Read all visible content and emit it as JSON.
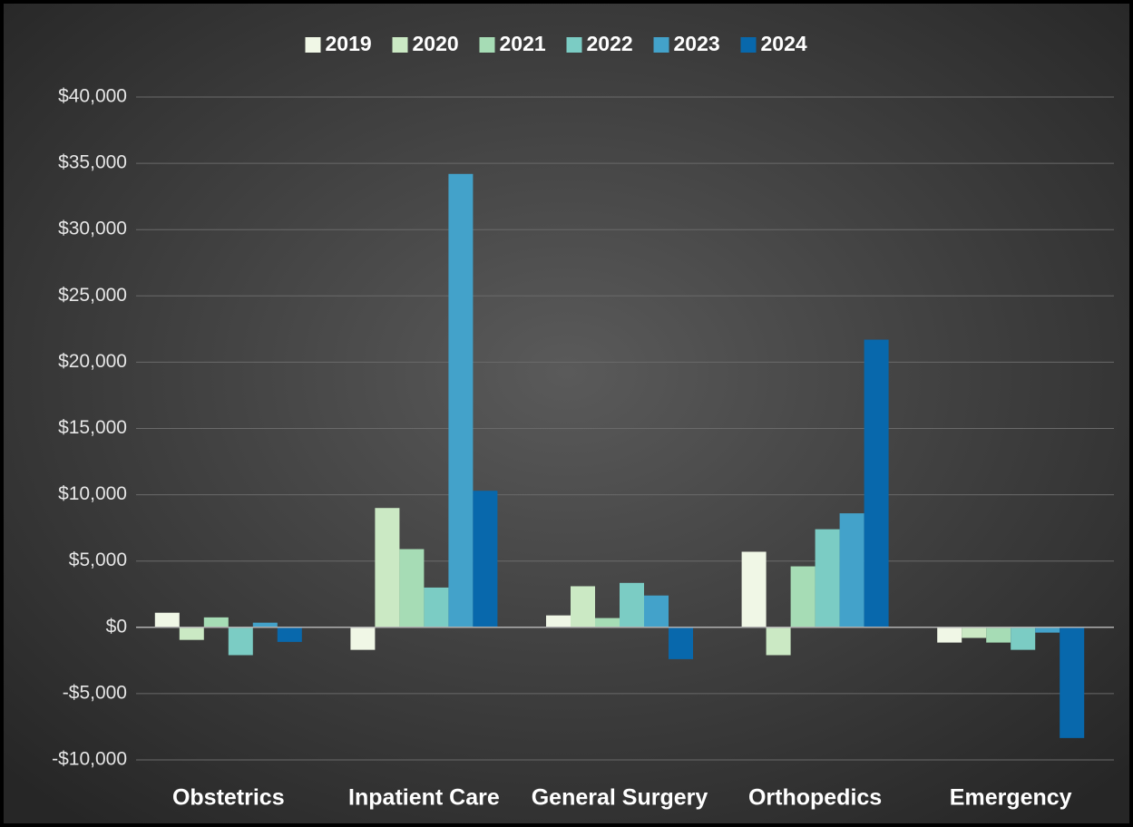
{
  "chart_data": {
    "type": "bar",
    "categories": [
      "Obstetrics",
      "Inpatient Care",
      "General Surgery",
      "Orthopedics",
      "Emergency"
    ],
    "series": [
      {
        "name": "2019",
        "color": "#f0f7e6",
        "values": [
          1100,
          -1700,
          900,
          5700,
          -1150
        ]
      },
      {
        "name": "2020",
        "color": "#cbe9c4",
        "values": [
          -950,
          9000,
          3100,
          -2100,
          -800
        ]
      },
      {
        "name": "2021",
        "color": "#a6dcb5",
        "values": [
          750,
          5900,
          700,
          4600,
          -1150
        ]
      },
      {
        "name": "2022",
        "color": "#7bccc4",
        "values": [
          -2100,
          3000,
          3350,
          7400,
          -1700
        ]
      },
      {
        "name": "2023",
        "color": "#43a2ca",
        "values": [
          350,
          34200,
          2400,
          8600,
          -400
        ]
      },
      {
        "name": "2024",
        "color": "#0868ac",
        "values": [
          -1100,
          10300,
          -2400,
          21700,
          -8350
        ]
      }
    ],
    "ylim": [
      -10000,
      40000
    ],
    "yticks": [
      {
        "value": -10000,
        "label": "-$10,000"
      },
      {
        "value": -5000,
        "label": "-$5,000"
      },
      {
        "value": 0,
        "label": "$0"
      },
      {
        "value": 5000,
        "label": "$5,000"
      },
      {
        "value": 10000,
        "label": "$10,000"
      },
      {
        "value": 15000,
        "label": "$15,000"
      },
      {
        "value": 20000,
        "label": "$20,000"
      },
      {
        "value": 25000,
        "label": "$25,000"
      },
      {
        "value": 30000,
        "label": "$30,000"
      },
      {
        "value": 35000,
        "label": "$35,000"
      },
      {
        "value": 40000,
        "label": "$40,000"
      }
    ],
    "grid": true,
    "legend": "top"
  }
}
